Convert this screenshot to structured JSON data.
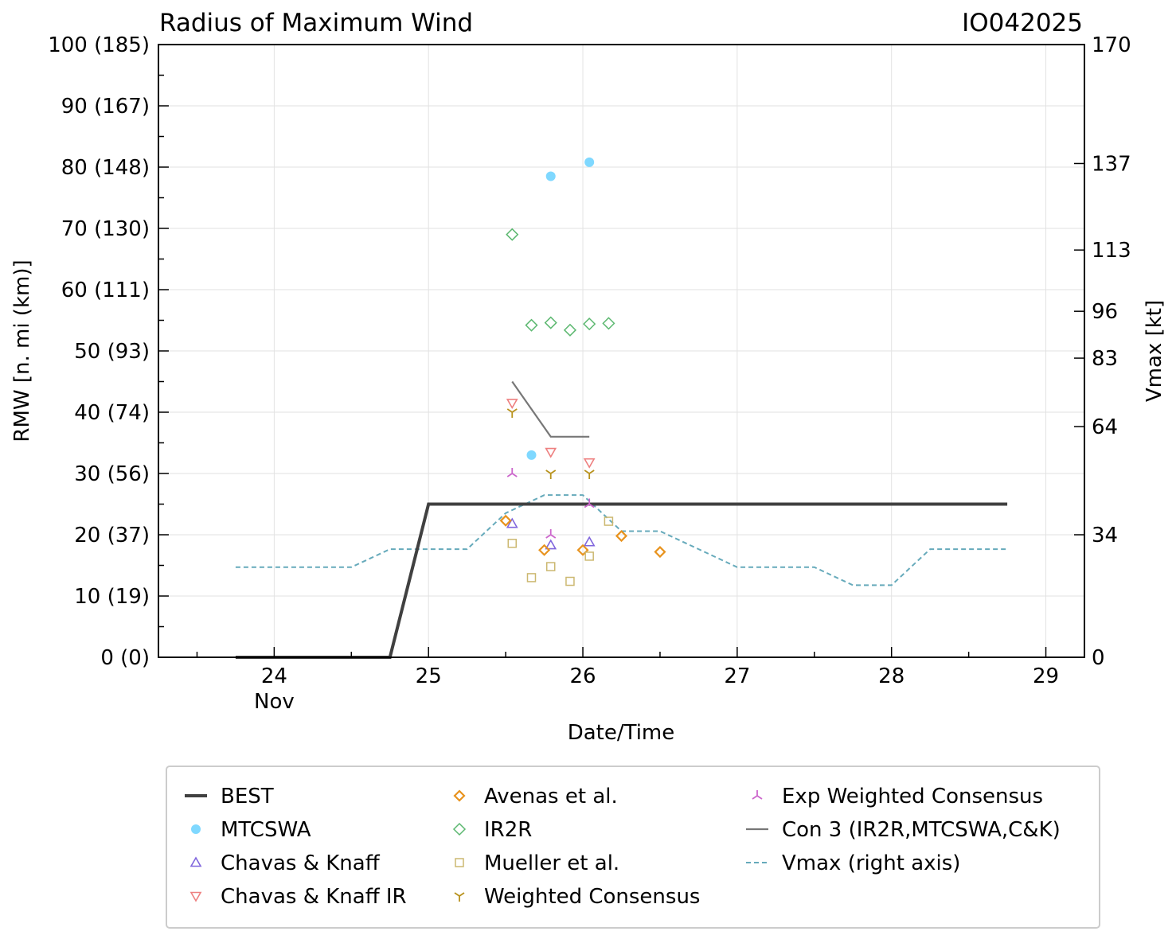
{
  "chart_data": {
    "type": "scatter",
    "title": "Radius of Maximum Wind",
    "storm_id": "IO042025",
    "xlabel": "Date/Time",
    "ylabel": "RMW [n. mi (km)]",
    "y2label": "Vmax [kt]",
    "xlim": [
      23.25,
      29.25
    ],
    "ylim": [
      0,
      100
    ],
    "x_ticks": [
      {
        "value": 24,
        "label": "24",
        "sublabel": "Nov"
      },
      {
        "value": 25,
        "label": "25",
        "sublabel": ""
      },
      {
        "value": 26,
        "label": "26",
        "sublabel": ""
      },
      {
        "value": 27,
        "label": "27",
        "sublabel": ""
      },
      {
        "value": 28,
        "label": "28",
        "sublabel": ""
      },
      {
        "value": 29,
        "label": "29",
        "sublabel": ""
      }
    ],
    "y_ticks": [
      {
        "value": 0,
        "label": "0 (0)"
      },
      {
        "value": 10,
        "label": "10 (19)"
      },
      {
        "value": 20,
        "label": "20 (37)"
      },
      {
        "value": 30,
        "label": "30 (56)"
      },
      {
        "value": 40,
        "label": "40 (74)"
      },
      {
        "value": 50,
        "label": "50 (93)"
      },
      {
        "value": 60,
        "label": "60 (111)"
      },
      {
        "value": 70,
        "label": "70 (130)"
      },
      {
        "value": 80,
        "label": "80 (148)"
      },
      {
        "value": 90,
        "label": "90 (167)"
      },
      {
        "value": 100,
        "label": "100 (185)"
      }
    ],
    "y2_ticks": [
      {
        "value": 0,
        "label": "0"
      },
      {
        "value": 34,
        "label": "34"
      },
      {
        "value": 64,
        "label": "64"
      },
      {
        "value": 83,
        "label": "83"
      },
      {
        "value": 96,
        "label": "96"
      },
      {
        "value": 113,
        "label": "113"
      },
      {
        "value": 137,
        "label": "137"
      },
      {
        "value": 170,
        "label": "170"
      }
    ],
    "y2lim": [
      0,
      170
    ],
    "grid": true,
    "legend_position": "bottom",
    "series": [
      {
        "name": "BEST",
        "kind": "line",
        "color": "#404040",
        "x": [
          23.75,
          24.0,
          24.25,
          24.5,
          24.75,
          25.0,
          25.25,
          25.5,
          25.75,
          26.0,
          26.25,
          26.5,
          26.75,
          27.0,
          27.25,
          27.5,
          27.75,
          28.0,
          28.25,
          28.5,
          28.75
        ],
        "y": [
          0,
          0,
          0,
          0,
          0,
          25,
          25,
          25,
          25,
          25,
          25,
          25,
          25,
          25,
          25,
          25,
          25,
          25,
          25,
          25,
          25
        ]
      },
      {
        "name": "MTCSWA",
        "kind": "circle",
        "color": "#7fd8ff",
        "x": [
          25.667,
          25.792,
          26.042
        ],
        "y": [
          33,
          78.5,
          80.8
        ]
      },
      {
        "name": "Chavas & Knaff",
        "kind": "triangle-up",
        "color": "#8066dd",
        "x": [
          25.542,
          25.792,
          26.042
        ],
        "y": [
          21.8,
          18.3,
          18.8
        ]
      },
      {
        "name": "Chavas & Knaff IR",
        "kind": "triangle-down",
        "color": "#ee8080",
        "x": [
          25.542,
          25.792,
          26.042
        ],
        "y": [
          41.5,
          33.5,
          31.8
        ]
      },
      {
        "name": "Avenas et al.",
        "kind": "diamond",
        "color": "#e8931e",
        "x": [
          25.5,
          25.75,
          26.0,
          26.25,
          26.5
        ],
        "y": [
          22.3,
          17.5,
          17.5,
          19.8,
          17.2
        ]
      },
      {
        "name": "IR2R",
        "kind": "diamond-open",
        "color": "#5cb870",
        "x": [
          25.542,
          25.667,
          25.792,
          25.917,
          26.042,
          26.167
        ],
        "y": [
          69.0,
          54.2,
          54.6,
          53.4,
          54.4,
          54.5
        ]
      },
      {
        "name": "Mueller et al.",
        "kind": "square",
        "color": "#ccb870",
        "x": [
          25.542,
          25.667,
          25.792,
          25.917,
          26.042,
          26.167
        ],
        "y": [
          18.6,
          13.0,
          14.8,
          12.4,
          16.5,
          22.2
        ]
      },
      {
        "name": "Weighted Consensus",
        "kind": "tri-down",
        "color": "#b8921c",
        "x": [
          25.542,
          25.792,
          26.042
        ],
        "y": [
          40.0,
          30.0,
          30.0
        ]
      },
      {
        "name": "Exp Weighted Consensus",
        "kind": "tri-up",
        "color": "#cc66cc",
        "x": [
          25.542,
          25.792,
          26.042
        ],
        "y": [
          30.0,
          20.0,
          25.0
        ]
      },
      {
        "name": "Con 3 (IR2R,MTCSWA,C&K)",
        "kind": "line",
        "color": "#777777",
        "x": [
          25.542,
          25.792,
          26.042
        ],
        "y": [
          45.0,
          36.0,
          36.0
        ]
      },
      {
        "name": "Vmax (right axis)",
        "kind": "dashed",
        "color": "#66aabb",
        "axis": "right",
        "x": [
          23.75,
          24.0,
          24.25,
          24.5,
          24.75,
          25.0,
          25.25,
          25.5,
          25.75,
          26.0,
          26.25,
          26.5,
          26.75,
          27.0,
          27.25,
          27.5,
          27.75,
          28.0,
          28.25,
          28.5,
          28.75
        ],
        "y": [
          25,
          25,
          25,
          25,
          30,
          30,
          30,
          40,
          45,
          45,
          35,
          35,
          30,
          25,
          25,
          25,
          20,
          20,
          30,
          30,
          30
        ]
      }
    ]
  },
  "legend": {
    "items": [
      "BEST",
      "MTCSWA",
      "Chavas & Knaff",
      "Chavas & Knaff IR",
      "Avenas et al.",
      "IR2R",
      "Mueller et al.",
      "Weighted Consensus",
      "Exp Weighted Consensus",
      "Con 3 (IR2R,MTCSWA,C&K)",
      "Vmax (right axis)"
    ]
  }
}
